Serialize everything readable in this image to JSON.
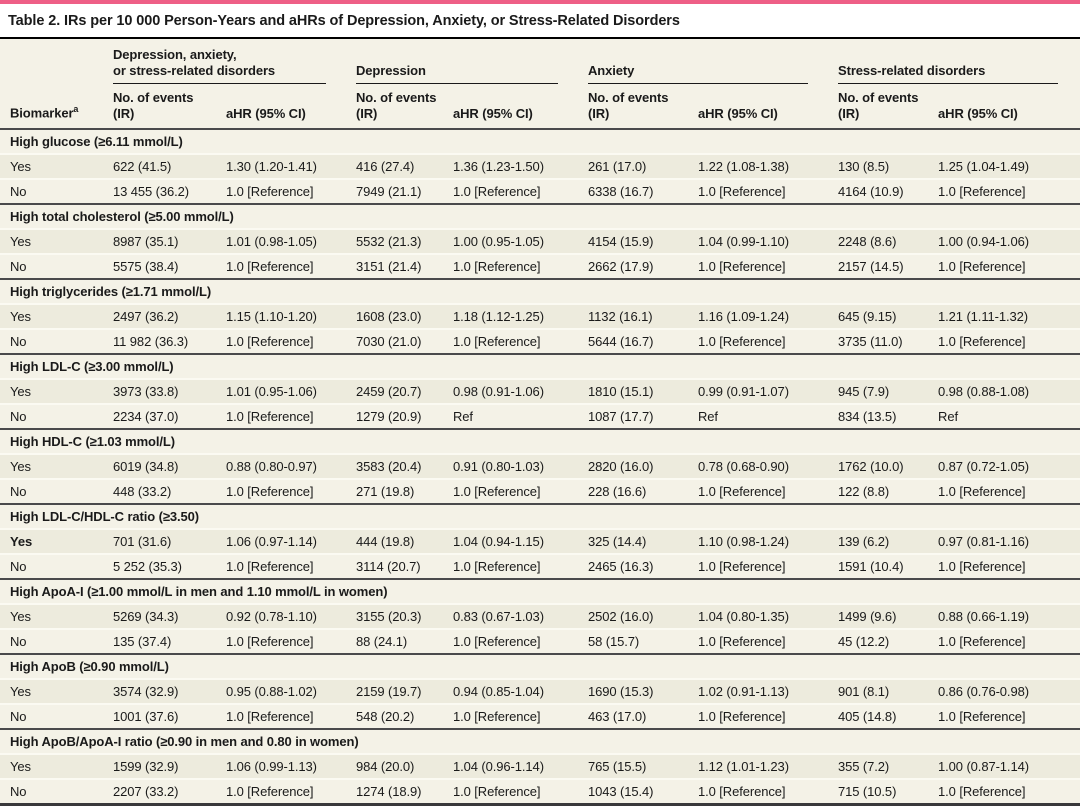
{
  "colors": {
    "accent_bar": "#ee5f86",
    "body_bg": "#f4f2e7",
    "band_bg": "#edebdd"
  },
  "title": "Table 2. IRs per 10 000 Person-Years and aHRs of Depression, Anxiety, or Stress-Related Disorders",
  "header": {
    "biomarker_label": "Biomarker",
    "biomarker_footnote_marker": "a",
    "groups": [
      "Depression, anxiety,\nor stress-related disorders",
      "Depression",
      "Anxiety",
      "Stress-related disorders"
    ],
    "events_label": "No. of events\n(IR)",
    "ahr_label": "aHR (95% CI)"
  },
  "sections": [
    {
      "label": "High glucose (≥6.11 mmol/L)",
      "rows": [
        {
          "label": "Yes",
          "cells": [
            "622 (41.5)",
            "1.30 (1.20-1.41)",
            "416 (27.4)",
            "1.36 (1.23-1.50)",
            "261 (17.0)",
            "1.22 (1.08-1.38)",
            "130 (8.5)",
            "1.25 (1.04-1.49)"
          ]
        },
        {
          "label": "No",
          "cells": [
            "13 455 (36.2)",
            "1.0 [Reference]",
            "7949 (21.1)",
            "1.0 [Reference]",
            "6338 (16.7)",
            "1.0 [Reference]",
            "4164 (10.9)",
            "1.0 [Reference]"
          ]
        }
      ]
    },
    {
      "label": "High total cholesterol (≥5.00 mmol/L)",
      "rows": [
        {
          "label": "Yes",
          "cells": [
            "8987 (35.1)",
            "1.01 (0.98-1.05)",
            "5532 (21.3)",
            "1.00 (0.95-1.05)",
            "4154 (15.9)",
            "1.04 (0.99-1.10)",
            "2248 (8.6)",
            "1.00 (0.94-1.06)"
          ]
        },
        {
          "label": "No",
          "cells": [
            "5575 (38.4)",
            "1.0 [Reference]",
            "3151 (21.4)",
            "1.0 [Reference]",
            "2662 (17.9)",
            "1.0 [Reference]",
            "2157 (14.5)",
            "1.0 [Reference]"
          ]
        }
      ]
    },
    {
      "label": "High triglycerides (≥1.71 mmol/L)",
      "rows": [
        {
          "label": "Yes",
          "cells": [
            "2497 (36.2)",
            "1.15 (1.10-1.20)",
            "1608 (23.0)",
            "1.18 (1.12-1.25)",
            "1132 (16.1)",
            "1.16 (1.09-1.24)",
            "645 (9.15)",
            "1.21 (1.11-1.32)"
          ]
        },
        {
          "label": "No",
          "cells": [
            "11 982 (36.3)",
            "1.0 [Reference]",
            "7030 (21.0)",
            "1.0 [Reference]",
            "5644 (16.7)",
            "1.0 [Reference]",
            "3735 (11.0)",
            "1.0 [Reference]"
          ]
        }
      ]
    },
    {
      "label": "High LDL-C (≥3.00 mmol/L)",
      "rows": [
        {
          "label": "Yes",
          "cells": [
            "3973 (33.8)",
            "1.01 (0.95-1.06)",
            "2459 (20.7)",
            "0.98 (0.91-1.06)",
            "1810 (15.1)",
            "0.99 (0.91-1.07)",
            "945 (7.9)",
            "0.98 (0.88-1.08)"
          ]
        },
        {
          "label": "No",
          "cells": [
            "2234 (37.0)",
            "1.0 [Reference]",
            "1279 (20.9)",
            "Ref",
            "1087 (17.7)",
            "Ref",
            "834 (13.5)",
            "Ref"
          ]
        }
      ]
    },
    {
      "label": "High HDL-C (≥1.03 mmol/L)",
      "rows": [
        {
          "label": "Yes",
          "cells": [
            "6019 (34.8)",
            "0.88 (0.80-0.97)",
            "3583 (20.4)",
            "0.91 (0.80-1.03)",
            "2820 (16.0)",
            "0.78 (0.68-0.90)",
            "1762 (10.0)",
            "0.87 (0.72-1.05)"
          ]
        },
        {
          "label": "No",
          "cells": [
            "448 (33.2)",
            "1.0 [Reference]",
            "271 (19.8)",
            "1.0 [Reference]",
            "228 (16.6)",
            "1.0 [Reference]",
            "122 (8.8)",
            "1.0 [Reference]"
          ]
        }
      ]
    },
    {
      "label": "High LDL-C/HDL-C ratio (≥3.50)",
      "rows": [
        {
          "label": "Yes",
          "label_bold": true,
          "cells": [
            "701 (31.6)",
            "1.06 (0.97-1.14)",
            "444 (19.8)",
            "1.04 (0.94-1.15)",
            "325 (14.4)",
            "1.10 (0.98-1.24)",
            "139 (6.2)",
            "0.97 (0.81-1.16)"
          ]
        },
        {
          "label": "No",
          "cells": [
            "5 252 (35.3)",
            "1.0 [Reference]",
            "3114 (20.7)",
            "1.0 [Reference]",
            "2465 (16.3)",
            "1.0 [Reference]",
            "1591 (10.4)",
            "1.0 [Reference]"
          ]
        }
      ]
    },
    {
      "label": "High ApoA-I (≥1.00 mmol/L in men and 1.10 mmol/L in women)",
      "rows": [
        {
          "label": "Yes",
          "cells": [
            "5269 (34.3)",
            "0.92 (0.78-1.10)",
            "3155 (20.3)",
            "0.83 (0.67-1.03)",
            "2502 (16.0)",
            "1.04 (0.80-1.35)",
            "1499 (9.6)",
            "0.88 (0.66-1.19)"
          ]
        },
        {
          "label": "No",
          "cells": [
            "135 (37.4)",
            "1.0 [Reference]",
            "88 (24.1)",
            "1.0 [Reference]",
            "58 (15.7)",
            "1.0 [Reference]",
            "45 (12.2)",
            "1.0 [Reference]"
          ]
        }
      ]
    },
    {
      "label": "High ApoB (≥0.90 mmol/L)",
      "rows": [
        {
          "label": "Yes",
          "cells": [
            "3574 (32.9)",
            "0.95 (0.88-1.02)",
            "2159 (19.7)",
            "0.94 (0.85-1.04)",
            "1690 (15.3)",
            "1.02 (0.91-1.13)",
            "901 (8.1)",
            "0.86 (0.76-0.98)"
          ]
        },
        {
          "label": "No",
          "cells": [
            "1001 (37.6)",
            "1.0 [Reference]",
            "548 (20.2)",
            "1.0 [Reference]",
            "463 (17.0)",
            "1.0 [Reference]",
            "405 (14.8)",
            "1.0 [Reference]"
          ]
        }
      ]
    },
    {
      "label": "High ApoB/ApoA-I ratio (≥0.90 in men and 0.80 in women)",
      "rows": [
        {
          "label": "Yes",
          "cells": [
            "1599 (32.9)",
            "1.06 (0.99-1.13)",
            "984 (20.0)",
            "1.04 (0.96-1.14)",
            "765 (15.5)",
            "1.12 (1.01-1.23)",
            "355 (7.2)",
            "1.00 (0.87-1.14)"
          ]
        },
        {
          "label": "No",
          "cells": [
            "2207 (33.2)",
            "1.0 [Reference]",
            "1274 (18.9)",
            "1.0 [Reference]",
            "1043 (15.4)",
            "1.0 [Reference]",
            "715 (10.5)",
            "1.0 [Reference]"
          ]
        }
      ]
    }
  ]
}
